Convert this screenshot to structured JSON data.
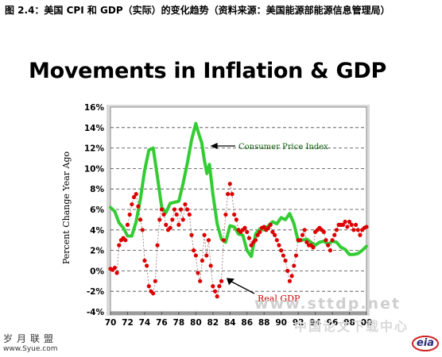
{
  "caption": "图 2.4：美国 CPI 和 GDP（实际）的变化趋势（资料来源：美国能源部能源信息管理局）",
  "branding": {
    "left_cn": "岁月联盟",
    "left_url": "www.Syue.com",
    "eia": "eia",
    "watermark": "www.sttdp.net",
    "watermark2": "中国论文下载中心"
  },
  "colors": {
    "cpi": "#33cc33",
    "gdp_point": "#dd0000",
    "gdp_line": "#9a7070",
    "plot_bg": "#ffffff",
    "border": "#bdbdbd"
  },
  "chart_data": {
    "type": "line",
    "title": "Movements in Inflation & GDP",
    "ylabel": "Percent Change Year Ago",
    "xlabel": "",
    "xlim": [
      1970,
      2000
    ],
    "ylim": [
      -4,
      16
    ],
    "grid": "horizontal dashed",
    "x_ticks": [
      {
        "value": 1970,
        "label": "70"
      },
      {
        "value": 1972,
        "label": "72"
      },
      {
        "value": 1974,
        "label": "74"
      },
      {
        "value": 1976,
        "label": "76"
      },
      {
        "value": 1978,
        "label": "78"
      },
      {
        "value": 1980,
        "label": "80"
      },
      {
        "value": 1982,
        "label": "82"
      },
      {
        "value": 1984,
        "label": "84"
      },
      {
        "value": 1986,
        "label": "86"
      },
      {
        "value": 1988,
        "label": "88"
      },
      {
        "value": 1990,
        "label": "90"
      },
      {
        "value": 1992,
        "label": "92"
      },
      {
        "value": 1994,
        "label": "94"
      },
      {
        "value": 1996,
        "label": "96"
      },
      {
        "value": 1998,
        "label": "98"
      },
      {
        "value": 2000,
        "label": "00"
      }
    ],
    "y_ticks": [
      {
        "value": -4,
        "label": "-4%"
      },
      {
        "value": -2,
        "label": "-2%"
      },
      {
        "value": 0,
        "label": "0%"
      },
      {
        "value": 2,
        "label": "2%"
      },
      {
        "value": 4,
        "label": "4%"
      },
      {
        "value": 6,
        "label": "6%"
      },
      {
        "value": 8,
        "label": "8%"
      },
      {
        "value": 10,
        "label": "10%"
      },
      {
        "value": 12,
        "label": "12%"
      },
      {
        "value": 14,
        "label": "14%"
      },
      {
        "value": 16,
        "label": "16%"
      }
    ],
    "series": [
      {
        "name": "Consumer Price Index",
        "style": "line",
        "x": [
          1970.0,
          1970.5,
          1971.0,
          1971.5,
          1972.0,
          1972.5,
          1973.0,
          1973.5,
          1974.0,
          1974.5,
          1975.0,
          1975.5,
          1976.0,
          1976.5,
          1977.0,
          1977.5,
          1978.0,
          1978.5,
          1979.0,
          1979.5,
          1980.0,
          1980.3,
          1980.7,
          1981.0,
          1981.3,
          1981.6,
          1982.0,
          1982.5,
          1983.0,
          1983.5,
          1984.0,
          1984.5,
          1985.0,
          1985.5,
          1986.0,
          1986.5,
          1987.0,
          1987.5,
          1988.0,
          1988.5,
          1989.0,
          1989.5,
          1990.0,
          1990.5,
          1991.0,
          1991.5,
          1992.0,
          1992.5,
          1993.0,
          1993.5,
          1994.0,
          1994.5,
          1995.0,
          1995.5,
          1996.0,
          1996.5,
          1997.0,
          1997.5,
          1998.0,
          1998.5,
          1999.0,
          1999.5,
          2000.0
        ],
        "values": [
          6.2,
          5.8,
          4.7,
          4.2,
          3.4,
          3.4,
          4.8,
          7.0,
          9.8,
          11.8,
          12.0,
          9.2,
          6.2,
          5.7,
          6.6,
          6.7,
          6.8,
          8.5,
          10.5,
          12.8,
          14.4,
          13.5,
          12.5,
          10.8,
          9.5,
          10.4,
          7.5,
          4.6,
          3.1,
          2.8,
          4.4,
          4.3,
          3.6,
          3.5,
          2.0,
          1.4,
          3.6,
          4.1,
          4.0,
          4.4,
          4.8,
          4.6,
          5.2,
          5.0,
          5.6,
          4.6,
          2.9,
          3.0,
          3.1,
          2.8,
          2.5,
          2.8,
          2.9,
          2.6,
          2.9,
          2.8,
          2.3,
          2.1,
          1.6,
          1.6,
          1.7,
          2.0,
          2.4
        ]
      },
      {
        "name": "Real GDP",
        "style": "points",
        "x": [
          1970.0,
          1970.25,
          1970.5,
          1970.75,
          1971.0,
          1971.25,
          1971.5,
          1971.75,
          1972.0,
          1972.25,
          1972.5,
          1972.75,
          1973.0,
          1973.25,
          1973.5,
          1973.75,
          1974.0,
          1974.25,
          1974.5,
          1974.75,
          1975.0,
          1975.25,
          1975.5,
          1975.75,
          1976.0,
          1976.25,
          1976.5,
          1976.75,
          1977.0,
          1977.25,
          1977.5,
          1977.75,
          1978.0,
          1978.25,
          1978.5,
          1978.75,
          1979.0,
          1979.25,
          1979.5,
          1979.75,
          1980.0,
          1980.25,
          1980.5,
          1980.75,
          1981.0,
          1981.25,
          1981.5,
          1981.75,
          1982.0,
          1982.25,
          1982.5,
          1982.75,
          1983.0,
          1983.25,
          1983.5,
          1983.75,
          1984.0,
          1984.25,
          1984.5,
          1984.75,
          1985.0,
          1985.25,
          1985.5,
          1985.75,
          1986.0,
          1986.25,
          1986.5,
          1986.75,
          1987.0,
          1987.25,
          1987.5,
          1987.75,
          1988.0,
          1988.25,
          1988.5,
          1988.75,
          1989.0,
          1989.25,
          1989.5,
          1989.75,
          1990.0,
          1990.25,
          1990.5,
          1990.75,
          1991.0,
          1991.25,
          1991.5,
          1991.75,
          1992.0,
          1992.25,
          1992.5,
          1992.75,
          1993.0,
          1993.25,
          1993.5,
          1993.75,
          1994.0,
          1994.25,
          1994.5,
          1994.75,
          1995.0,
          1995.25,
          1995.5,
          1995.75,
          1996.0,
          1996.25,
          1996.5,
          1996.75,
          1997.0,
          1997.25,
          1997.5,
          1997.75,
          1998.0,
          1998.25,
          1998.5,
          1998.75,
          1999.0,
          1999.25,
          1999.5,
          1999.75,
          2000.0
        ],
        "values": [
          0.2,
          0.1,
          0.3,
          -0.2,
          2.5,
          3.0,
          3.2,
          3.0,
          4.5,
          5.5,
          6.5,
          7.2,
          7.5,
          6.3,
          5.0,
          4.0,
          1.0,
          0.5,
          -1.5,
          -2.0,
          -2.2,
          -1.0,
          2.5,
          5.0,
          6.0,
          5.5,
          4.5,
          4.0,
          4.2,
          5.0,
          6.0,
          5.5,
          4.5,
          6.0,
          5.0,
          6.5,
          6.0,
          5.5,
          3.5,
          2.0,
          1.5,
          -0.2,
          -1.0,
          1.0,
          3.5,
          1.5,
          3.0,
          0.5,
          -1.5,
          -2.0,
          -2.5,
          -1.5,
          -1.0,
          3.0,
          5.5,
          7.5,
          8.5,
          7.5,
          5.5,
          5.0,
          4.0,
          3.8,
          4.0,
          4.2,
          3.8,
          3.2,
          2.5,
          2.8,
          3.0,
          3.5,
          3.8,
          4.2,
          4.3,
          4.0,
          4.2,
          4.5,
          3.8,
          3.5,
          3.0,
          2.5,
          2.0,
          1.5,
          1.0,
          0.0,
          -1.0,
          -0.5,
          0.5,
          1.5,
          3.0,
          3.0,
          3.5,
          4.0,
          2.8,
          2.5,
          2.5,
          2.3,
          3.8,
          4.0,
          4.2,
          4.0,
          3.8,
          3.0,
          2.5,
          2.0,
          3.0,
          3.5,
          4.0,
          4.5,
          4.5,
          4.5,
          4.8,
          4.3,
          4.8,
          4.5,
          4.0,
          4.5,
          4.0,
          3.5,
          4.0,
          4.2,
          4.3
        ]
      }
    ],
    "annotations": [
      {
        "text": "Consumer Price Index",
        "series": "Consumer Price Index",
        "arrow_to": [
          1981.7,
          12.2
        ],
        "placed_at": "right of peak"
      },
      {
        "text": "Real GDP",
        "series": "Real GDP",
        "arrow_to": [
          1983.6,
          -0.7
        ],
        "placed_at": "below"
      }
    ]
  }
}
